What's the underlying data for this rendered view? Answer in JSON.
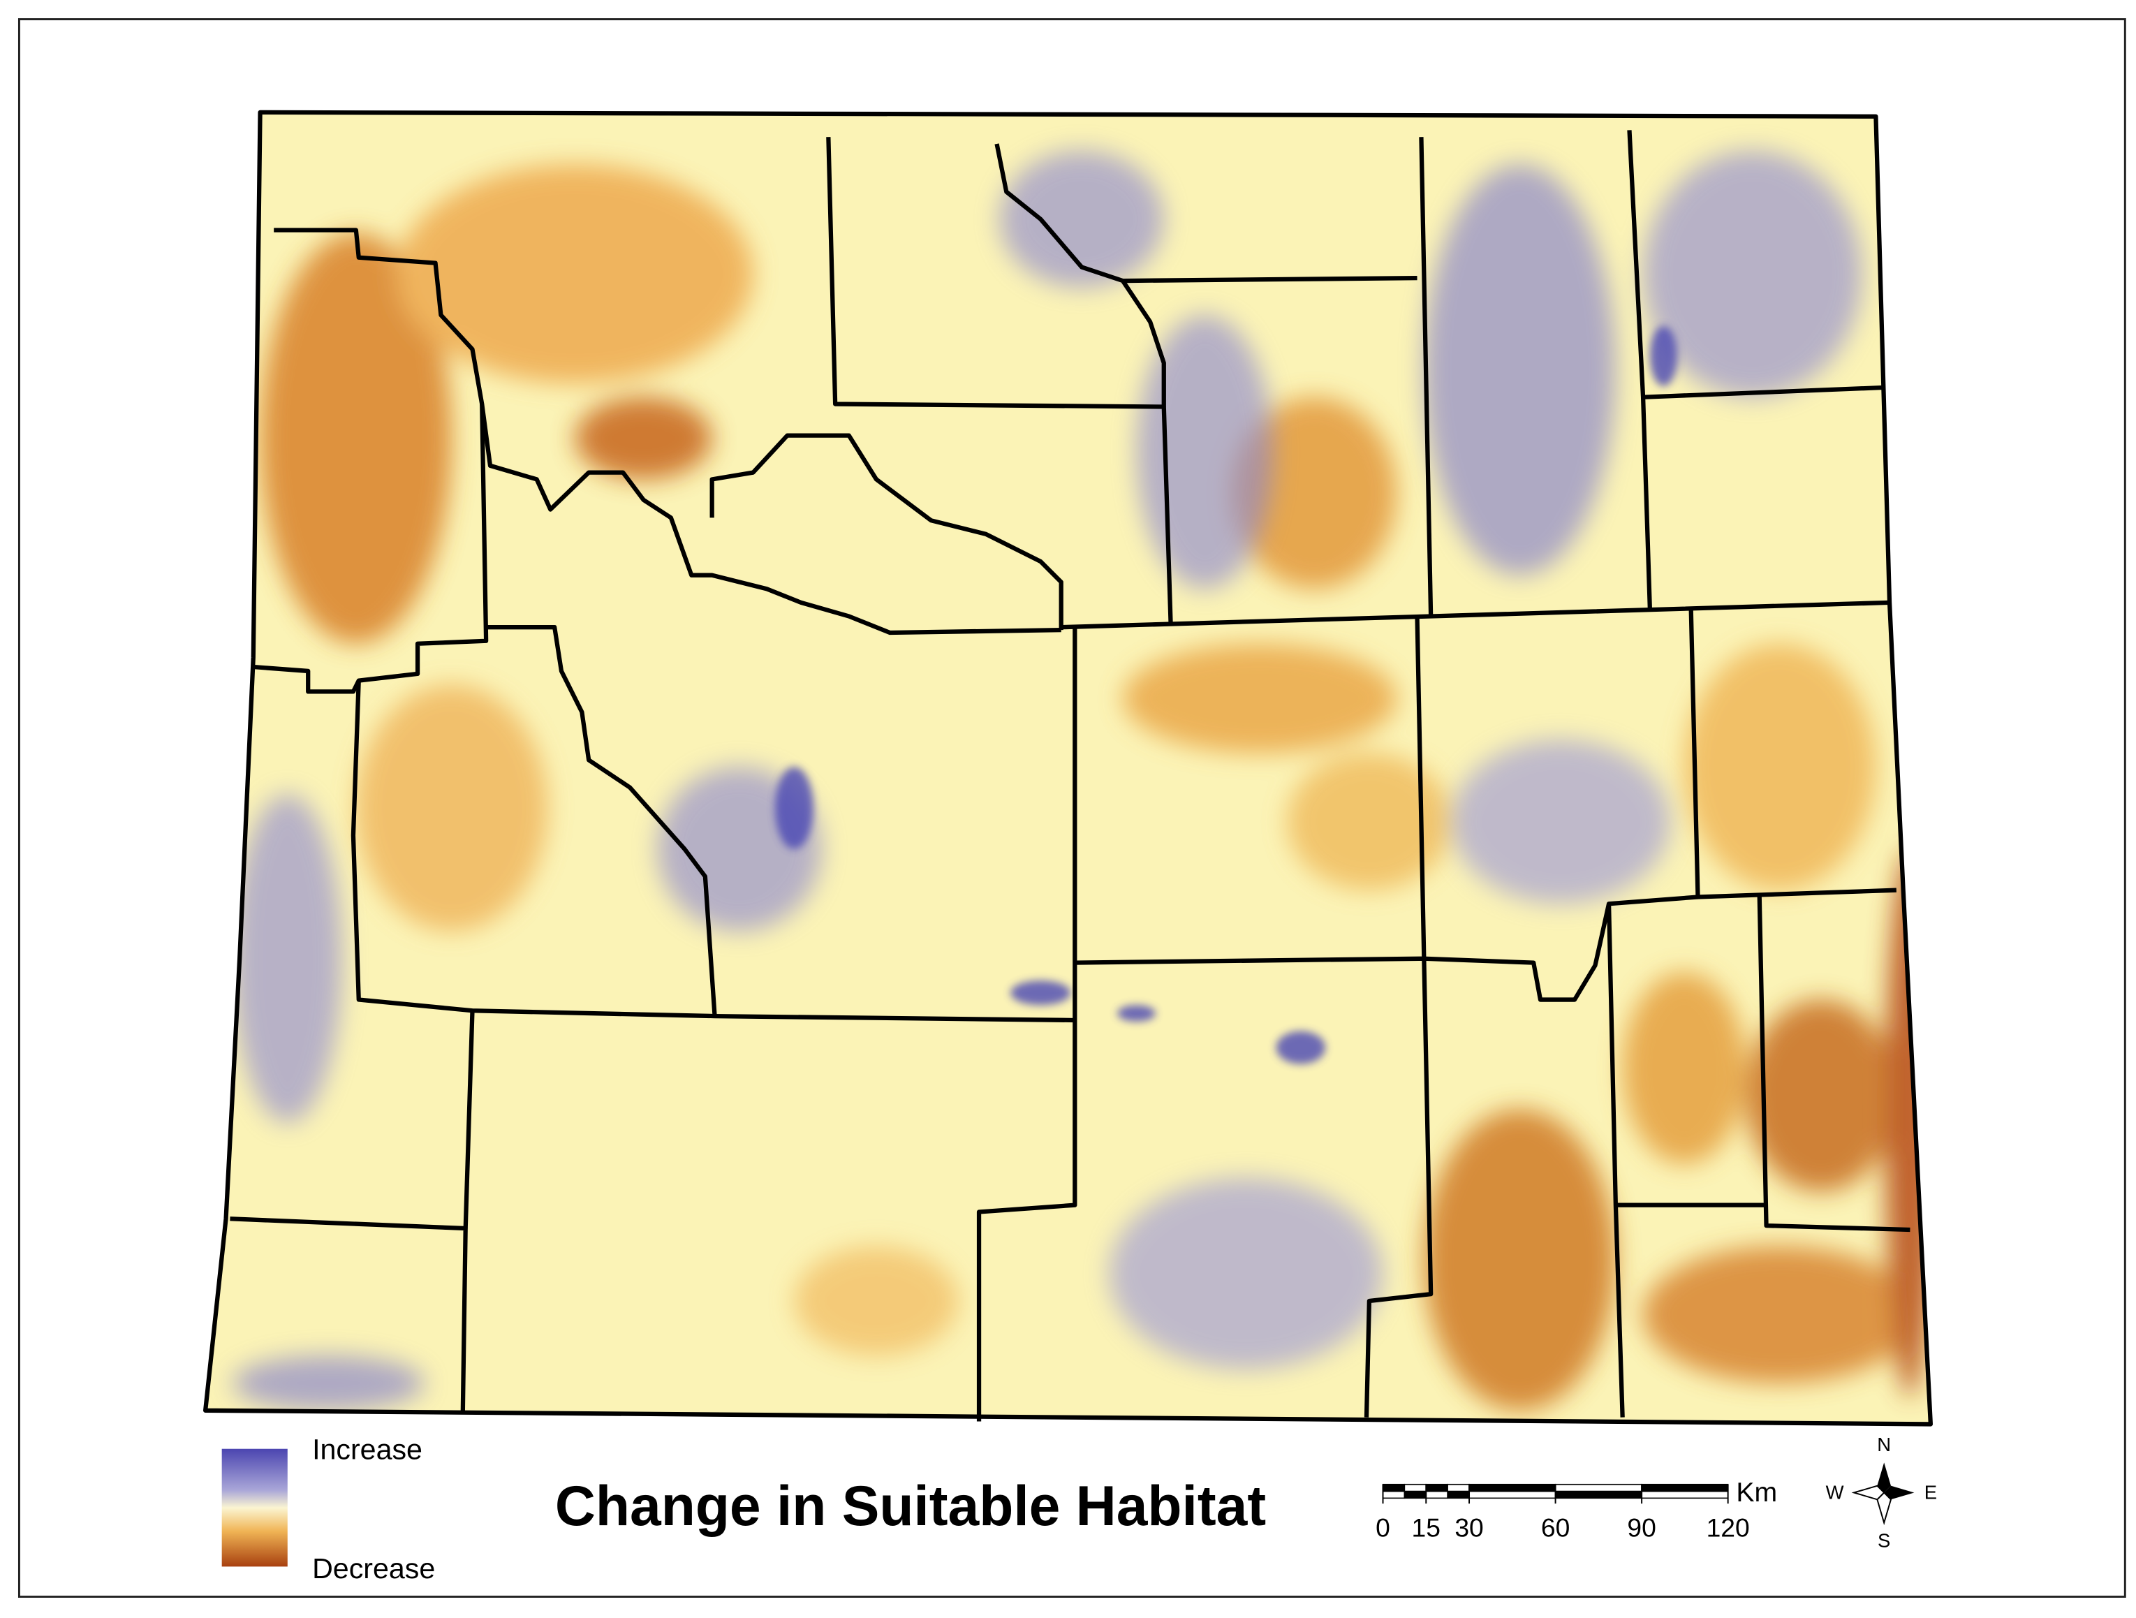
{
  "map": {
    "title": "Change in Suitable Habitat",
    "legend": {
      "increase": "Increase",
      "decrease": "Decrease"
    },
    "scale_bar": {
      "ticks": [
        0,
        15,
        30,
        60,
        90,
        120
      ],
      "unit": "Km"
    },
    "compass": {
      "n": "N",
      "s": "S",
      "e": "E",
      "w": "W"
    }
  }
}
